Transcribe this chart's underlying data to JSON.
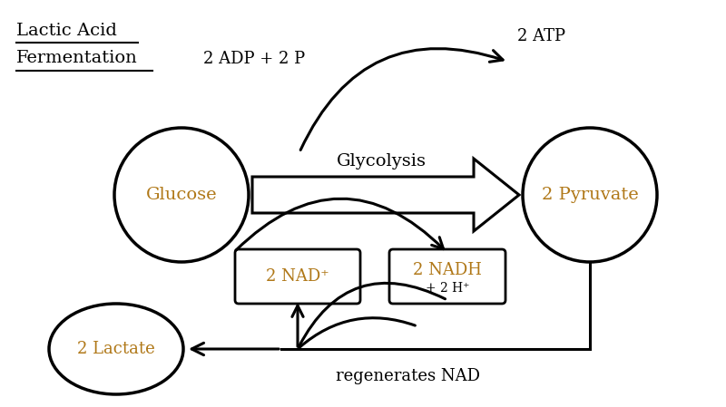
{
  "bg_color": "#ffffff",
  "text_color": "#000000",
  "label_color": "#b07818",
  "title_line1": "Lactic Acid",
  "title_line2": "Fermentation",
  "glucose_label": "Glucose",
  "pyruvate_label": "2 Pyruvate",
  "lactate_label": "2 Lactate",
  "nad_label": "2 NAD⁺",
  "nadh_label": "2 NADH",
  "nadh_sub": "+ 2 H⁺",
  "adp_label": "2 ADP + 2 P",
  "atp_label": "2 ATP",
  "glycolysis_label": "Glycolysis",
  "regen_label": "regenerates NAD"
}
